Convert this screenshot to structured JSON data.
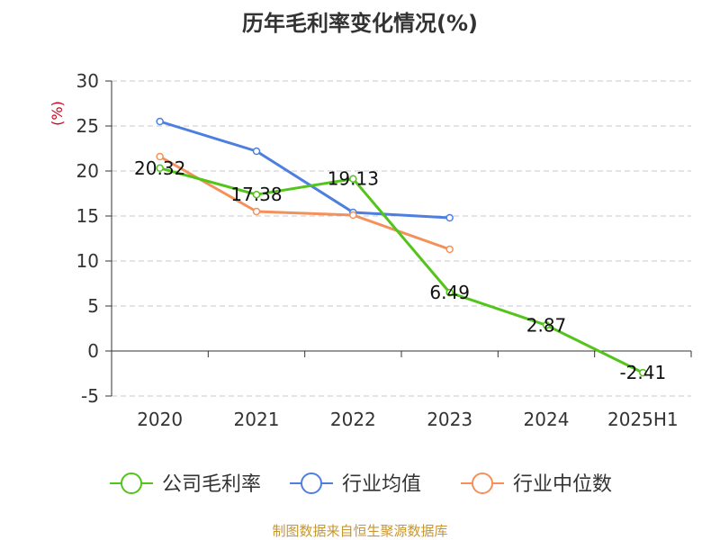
{
  "chart_data": {
    "type": "line",
    "title": "历年毛利率变化情况(%)",
    "ylabel": "(%)",
    "xlabel": "",
    "categories": [
      "2020",
      "2021",
      "2022",
      "2023",
      "2024",
      "2025H1"
    ],
    "ylim": [
      -5,
      30
    ],
    "yticks": [
      30,
      25,
      20,
      15,
      10,
      5,
      0,
      -5
    ],
    "grid": true,
    "legend_position": "bottom",
    "series": [
      {
        "name": "公司毛利率",
        "color": "#52c41a",
        "values": [
          20.32,
          17.38,
          19.13,
          6.49,
          2.87,
          -2.41
        ],
        "labels": [
          "20.32",
          "17.38",
          "19.13",
          "6.49",
          "2.87",
          "-2.41"
        ]
      },
      {
        "name": "行业均值",
        "color": "#4e7fe0",
        "values": [
          25.5,
          22.2,
          15.4,
          14.8,
          null,
          null
        ]
      },
      {
        "name": "行业中位数",
        "color": "#f4915a",
        "values": [
          21.6,
          15.5,
          15.1,
          11.3,
          null,
          null
        ]
      }
    ]
  },
  "unit_color": "#d0021b",
  "source": {
    "text": "制图数据来自恒生聚源数据库",
    "color": "#c8962e"
  }
}
